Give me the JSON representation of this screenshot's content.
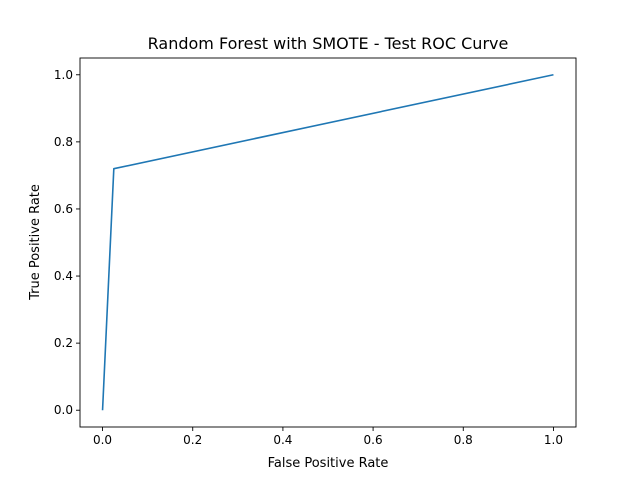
{
  "chart_data": {
    "type": "line",
    "title": "Random Forest with SMOTE - Test ROC Curve",
    "xlabel": "False Positive Rate",
    "ylabel": "True Positive Rate",
    "xlim": [
      -0.05,
      1.05
    ],
    "ylim": [
      -0.05,
      1.05
    ],
    "x_ticks": [
      "0.0",
      "0.2",
      "0.4",
      "0.6",
      "0.8",
      "1.0"
    ],
    "y_ticks": [
      "0.0",
      "0.2",
      "0.4",
      "0.6",
      "0.8",
      "1.0"
    ],
    "grid": false,
    "series": [
      {
        "color": "#1f77b4",
        "x": [
          0.0,
          0.025,
          1.0
        ],
        "y": [
          0.0,
          0.72,
          1.0
        ]
      }
    ]
  }
}
